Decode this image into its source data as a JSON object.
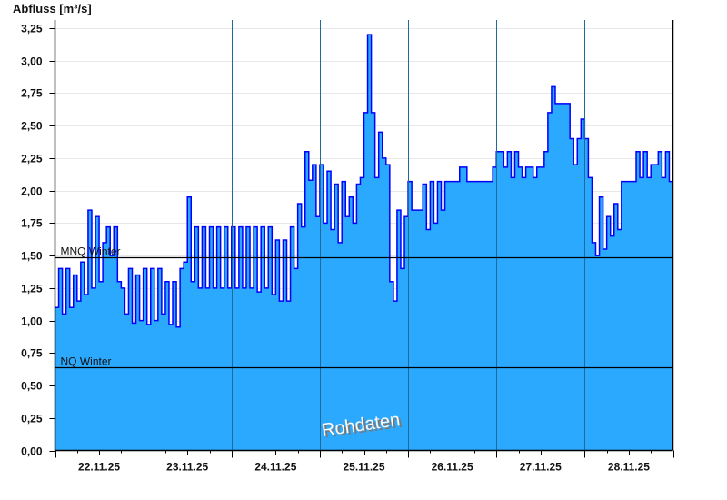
{
  "chart_data": {
    "type": "area",
    "title": "",
    "ylabel": "Abfluss [m³/s]",
    "xlabel": "",
    "ylim": [
      0,
      3.25
    ],
    "yticks": [
      "0,00",
      "0,25",
      "0,50",
      "0,75",
      "1,00",
      "1,25",
      "1,50",
      "1,75",
      "2,00",
      "2,25",
      "2,50",
      "2,75",
      "3,00",
      "3,25"
    ],
    "grid": true,
    "step": true,
    "colors": {
      "fill": "#2aa9ff",
      "line": "#0000ff",
      "day_lines": "#1f6a9a",
      "grid": "#e8e8e8"
    },
    "watermark": "Rohdaten",
    "reference_lines": [
      {
        "label": "MNQ Winter",
        "value": 1.49
      },
      {
        "label": "NQ Winter",
        "value": 0.64
      }
    ],
    "days": [
      {
        "date": "22.11.25",
        "hourly": [
          1.1,
          1.4,
          1.05,
          1.4,
          1.1,
          1.35,
          1.15,
          1.45,
          1.2,
          1.85,
          1.25,
          1.8,
          1.3,
          1.6,
          1.72,
          1.5,
          1.72,
          1.3,
          1.25,
          1.05,
          1.4,
          0.98,
          1.35,
          1.0
        ]
      },
      {
        "date": "23.11.25",
        "hourly": [
          1.4,
          0.97,
          1.4,
          1.0,
          1.4,
          1.05,
          1.3,
          0.97,
          1.3,
          0.95,
          1.4,
          1.45,
          1.95,
          1.3,
          1.72,
          1.25,
          1.72,
          1.25,
          1.72,
          1.25,
          1.72,
          1.25,
          1.72,
          1.25
        ]
      },
      {
        "date": "24.11.25",
        "hourly": [
          1.72,
          1.25,
          1.72,
          1.25,
          1.72,
          1.25,
          1.72,
          1.22,
          1.72,
          1.25,
          1.72,
          1.2,
          1.62,
          1.15,
          1.62,
          1.15,
          1.72,
          1.4,
          1.9,
          1.72,
          2.3,
          2.08,
          2.2,
          1.8
        ]
      },
      {
        "date": "25.11.25",
        "hourly": [
          2.2,
          1.75,
          2.15,
          1.7,
          2.05,
          1.6,
          2.07,
          1.8,
          1.95,
          1.75,
          2.05,
          2.1,
          2.6,
          3.2,
          2.6,
          2.1,
          2.45,
          2.25,
          2.2,
          1.3,
          1.15,
          1.85,
          1.4,
          1.8
        ]
      },
      {
        "date": "26.11.25",
        "hourly": [
          2.07,
          1.85,
          1.85,
          1.85,
          2.05,
          1.7,
          2.07,
          1.75,
          2.07,
          1.85,
          2.07,
          2.07,
          2.07,
          2.07,
          2.18,
          2.18,
          2.07,
          2.07,
          2.07,
          2.07,
          2.07,
          2.07,
          2.07,
          2.18
        ]
      },
      {
        "date": "27.11.25",
        "hourly": [
          2.3,
          2.3,
          2.18,
          2.3,
          2.1,
          2.3,
          2.18,
          2.1,
          2.18,
          2.18,
          2.1,
          2.18,
          2.18,
          2.3,
          2.6,
          2.8,
          2.67,
          2.67,
          2.67,
          2.67,
          2.4,
          2.2,
          2.4,
          2.55
        ]
      },
      {
        "date": "28.11.25",
        "hourly": [
          2.4,
          2.1,
          1.6,
          1.5,
          1.95,
          1.55,
          1.8,
          1.65,
          1.9,
          1.7,
          2.07,
          2.07,
          2.07,
          2.07,
          2.3,
          2.1,
          2.3,
          2.1,
          2.2,
          2.2,
          2.3,
          2.1,
          2.3,
          2.07
        ]
      }
    ]
  }
}
